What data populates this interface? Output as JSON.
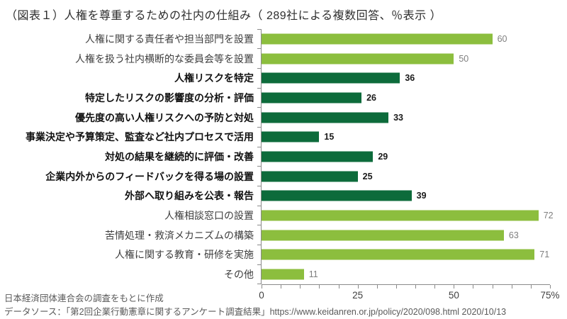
{
  "title": "（図表１）人権を尊重するための社内の仕組み（ 289社による複数回答、％表示 ）",
  "footer": {
    "line1": "日本経済団体連合会の調査をもとに作成",
    "line2": "データソース：「第2回企業行動憲章に関するアンケート調査結果」https://www.keidanren.or.jp/policy/2020/098.html 2020/10/13"
  },
  "colors": {
    "bar_light_green": "#8CBE3E",
    "bar_dark_green": "#0D6B3B",
    "value_label_gray": "#7F7F7F",
    "value_label_dark": "#1A1A1A",
    "axis_gray": "#8A8A8A"
  },
  "chart_data": {
    "type": "bar",
    "orientation": "horizontal",
    "title": "（図表１）人権を尊重するための社内の仕組み（ 289社による複数回答、％表示 ）",
    "n_respondents_note": "289社による複数回答、％表示",
    "categories": [
      "人権に関する責任者や担当部門を設置",
      "人権を扱う社内横断的な委員会等を設置",
      "人権リスクを特定",
      "特定したリスクの影響度の分析・評価",
      "優先度の高い人権リスクへの予防と対処",
      "事業決定や予算策定、監査など社内プロセスで活用",
      "対処の結果を継続的に評価・改善",
      "企業内外からのフィードバックを得る場の設置",
      "外部へ取り組みを公表・報告",
      "人権相談窓口の設置",
      "苦情処理・救済メカニズムの構築",
      "人権に関する教育・研修を実施",
      "その他"
    ],
    "values": [
      60,
      50,
      36,
      26,
      33,
      15,
      29,
      25,
      39,
      72,
      63,
      71,
      11
    ],
    "emphasized": [
      false,
      false,
      true,
      true,
      true,
      true,
      true,
      true,
      true,
      false,
      false,
      false,
      false
    ],
    "bar_colors": {
      "normal": "#8CBE3E",
      "emphasized": "#0D6B3B"
    },
    "xlim": [
      0,
      75
    ],
    "x_tick_values": [
      0,
      25,
      50,
      75
    ],
    "x_tick_labels": [
      "0",
      "25",
      "50",
      "75%"
    ],
    "x_minor_tick_step": 5,
    "grid": false,
    "legend": false
  }
}
